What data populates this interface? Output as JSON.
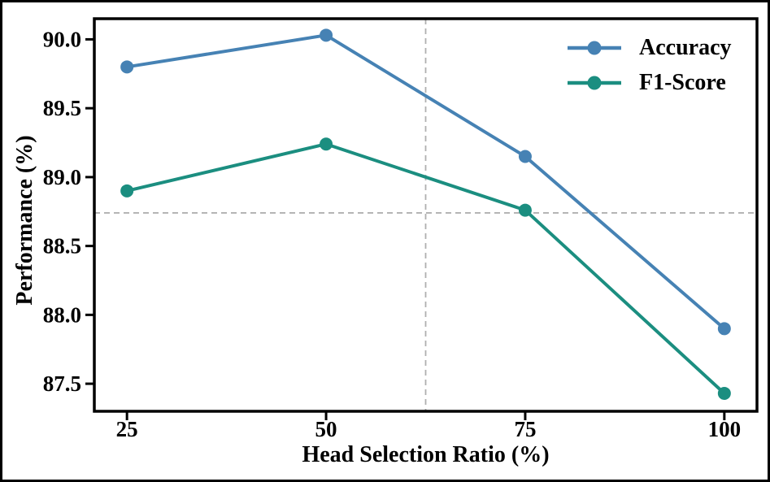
{
  "figure": {
    "background_color": "#ffffff",
    "frame_color": "#000000",
    "axis_color": "#000000"
  },
  "chart_data": {
    "type": "line",
    "title": "",
    "xlabel": "Head Selection Ratio (%)",
    "ylabel": "Performance (%)",
    "x": [
      25,
      50,
      75,
      100
    ],
    "series": [
      {
        "name": "Accuracy",
        "color": "#4682B4",
        "marker": "circle",
        "values": [
          89.8,
          90.03,
          89.15,
          87.9
        ]
      },
      {
        "name": "F1-Score",
        "color": "#1B8E80",
        "marker": "circle",
        "values": [
          88.9,
          89.24,
          88.76,
          87.43
        ]
      }
    ],
    "xtick_values": [
      25,
      50,
      75,
      100
    ],
    "xtick_labels": [
      "25",
      "50",
      "75",
      "100"
    ],
    "ytick_values": [
      90.0,
      89.5,
      89.0,
      88.5,
      88.0,
      87.5
    ],
    "ytick_labels": [
      "90.0",
      "89.5",
      "89.0",
      "88.5",
      "88.0",
      "87.5"
    ],
    "xlim": [
      20.9,
      104.1
    ],
    "ylim": [
      87.3,
      90.15
    ],
    "grid": false,
    "reference_lines": {
      "vertical_x": 62.5,
      "horizontal_y": 88.74,
      "color": "#b0b0b0",
      "style": "dashed"
    },
    "legend": {
      "position": "upper right",
      "frame": false,
      "entries": [
        "Accuracy",
        "F1-Score"
      ]
    }
  }
}
